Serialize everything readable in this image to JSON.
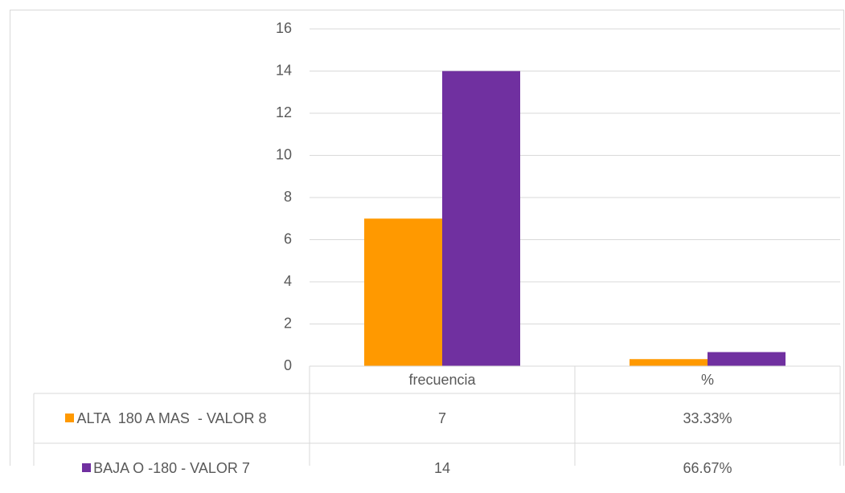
{
  "chart_data": {
    "type": "bar",
    "categories": [
      "frecuencia",
      "%"
    ],
    "series": [
      {
        "name": "ALTA  180 A MAS  - VALOR 8",
        "color": "#ff9900",
        "values": [
          7,
          0.3333
        ],
        "value_labels": [
          "7",
          "33.33%"
        ]
      },
      {
        "name": "BAJA O -180 - VALOR 7",
        "color": "#7030a0",
        "values": [
          14,
          0.6667
        ],
        "value_labels": [
          "14",
          "66.67%"
        ]
      }
    ],
    "ylim": [
      0,
      16
    ],
    "yticks": [
      0,
      2,
      4,
      6,
      8,
      10,
      12,
      14,
      16
    ],
    "grid": true,
    "legend": "table"
  }
}
